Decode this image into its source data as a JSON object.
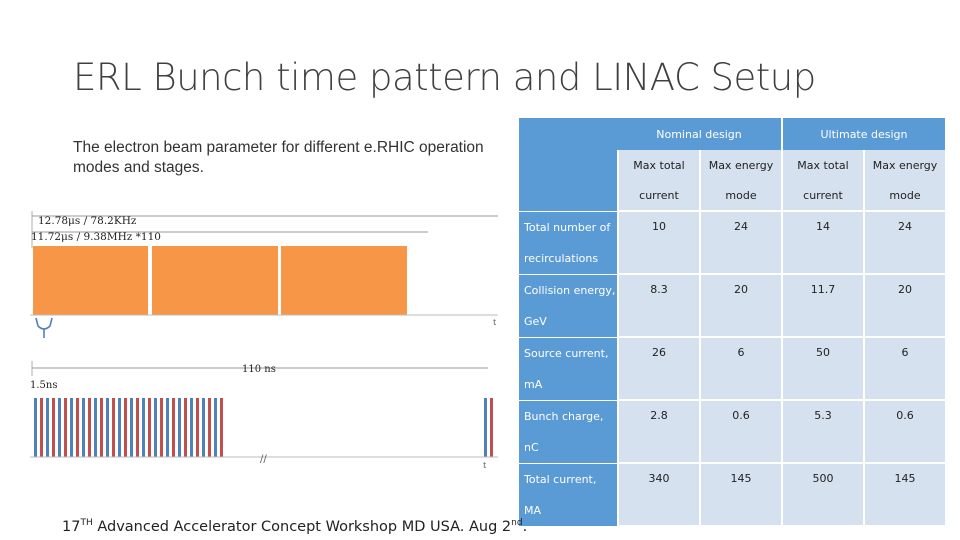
{
  "slide": {
    "title": "ERL Bunch time pattern and LINAC Setup",
    "description": "The electron beam parameter for different e.RHIC operation modes and stages.",
    "footer_main": "17",
    "footer_sup": "TH",
    "footer_rest": " Advanced Accelerator Concept Workshop MD USA. Aug 2",
    "footer_sup2": "nd",
    "footer_end": "."
  },
  "diagram": {
    "label_top1": "12.78μs / 78.2KHz",
    "label_top2": "11.72μs / 9.38MHz *110",
    "label_110ns": "110 ns",
    "label_15ns": "1.5ns",
    "tick_t1": "t",
    "tick_t2": "t",
    "break_mark": "//",
    "orange": "#f79646",
    "blue": "#4f81bd",
    "red": "#c0504d"
  },
  "table": {
    "group1": "Nominal design",
    "group2": "Ultimate design",
    "sub1": [
      "Max total",
      "Max energy",
      "Max total",
      "Max energy"
    ],
    "sub2": [
      "current",
      "mode",
      "current",
      "mode"
    ],
    "rows": [
      {
        "label1": "Total number of",
        "label2": "recirculations",
        "values": [
          "10",
          "24",
          "14",
          "24"
        ]
      },
      {
        "label1": "Collision energy,",
        "label2": "GeV",
        "values": [
          "8.3",
          "20",
          "11.7",
          "20"
        ]
      },
      {
        "label1": "Source   current,",
        "label2": "mA",
        "values": [
          "26",
          "6",
          "50",
          "6"
        ]
      },
      {
        "label1": "Bunch     charge,",
        "label2": "nC",
        "values": [
          "2.8",
          "0.6",
          "5.3",
          "0.6"
        ]
      },
      {
        "label1": "Total      current,",
        "label2": "MA",
        "values": [
          "340",
          "145",
          "500",
          "145"
        ]
      }
    ]
  }
}
